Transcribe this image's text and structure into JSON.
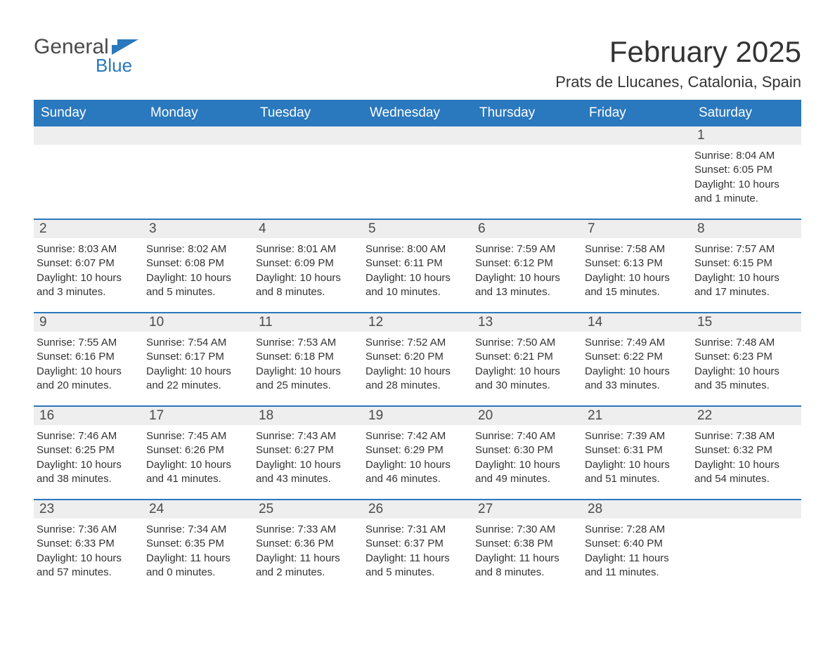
{
  "logo": {
    "top": "General",
    "bottom": "Blue",
    "text_color": "#4a4a4a",
    "accent_color": "#2a78bd"
  },
  "title": "February 2025",
  "location": "Prats de Llucanes, Catalonia, Spain",
  "colors": {
    "header_bg": "#2a78bd",
    "header_text": "#ffffff",
    "daynum_bg": "#eeeeee",
    "daynum_text": "#4a4a4a",
    "body_text": "#333333",
    "rule": "#2a78bd",
    "page_bg": "#ffffff"
  },
  "font": {
    "family": "Arial",
    "title_size_pt": 32,
    "location_size_pt": 17,
    "dow_size_pt": 14,
    "daynum_size_pt": 14,
    "body_size_pt": 11
  },
  "days_of_week": [
    "Sunday",
    "Monday",
    "Tuesday",
    "Wednesday",
    "Thursday",
    "Friday",
    "Saturday"
  ],
  "weeks": [
    [
      {
        "n": "",
        "sunrise": "",
        "sunset": "",
        "daylight": ""
      },
      {
        "n": "",
        "sunrise": "",
        "sunset": "",
        "daylight": ""
      },
      {
        "n": "",
        "sunrise": "",
        "sunset": "",
        "daylight": ""
      },
      {
        "n": "",
        "sunrise": "",
        "sunset": "",
        "daylight": ""
      },
      {
        "n": "",
        "sunrise": "",
        "sunset": "",
        "daylight": ""
      },
      {
        "n": "",
        "sunrise": "",
        "sunset": "",
        "daylight": ""
      },
      {
        "n": "1",
        "sunrise": "Sunrise: 8:04 AM",
        "sunset": "Sunset: 6:05 PM",
        "daylight": "Daylight: 10 hours and 1 minute."
      }
    ],
    [
      {
        "n": "2",
        "sunrise": "Sunrise: 8:03 AM",
        "sunset": "Sunset: 6:07 PM",
        "daylight": "Daylight: 10 hours and 3 minutes."
      },
      {
        "n": "3",
        "sunrise": "Sunrise: 8:02 AM",
        "sunset": "Sunset: 6:08 PM",
        "daylight": "Daylight: 10 hours and 5 minutes."
      },
      {
        "n": "4",
        "sunrise": "Sunrise: 8:01 AM",
        "sunset": "Sunset: 6:09 PM",
        "daylight": "Daylight: 10 hours and 8 minutes."
      },
      {
        "n": "5",
        "sunrise": "Sunrise: 8:00 AM",
        "sunset": "Sunset: 6:11 PM",
        "daylight": "Daylight: 10 hours and 10 minutes."
      },
      {
        "n": "6",
        "sunrise": "Sunrise: 7:59 AM",
        "sunset": "Sunset: 6:12 PM",
        "daylight": "Daylight: 10 hours and 13 minutes."
      },
      {
        "n": "7",
        "sunrise": "Sunrise: 7:58 AM",
        "sunset": "Sunset: 6:13 PM",
        "daylight": "Daylight: 10 hours and 15 minutes."
      },
      {
        "n": "8",
        "sunrise": "Sunrise: 7:57 AM",
        "sunset": "Sunset: 6:15 PM",
        "daylight": "Daylight: 10 hours and 17 minutes."
      }
    ],
    [
      {
        "n": "9",
        "sunrise": "Sunrise: 7:55 AM",
        "sunset": "Sunset: 6:16 PM",
        "daylight": "Daylight: 10 hours and 20 minutes."
      },
      {
        "n": "10",
        "sunrise": "Sunrise: 7:54 AM",
        "sunset": "Sunset: 6:17 PM",
        "daylight": "Daylight: 10 hours and 22 minutes."
      },
      {
        "n": "11",
        "sunrise": "Sunrise: 7:53 AM",
        "sunset": "Sunset: 6:18 PM",
        "daylight": "Daylight: 10 hours and 25 minutes."
      },
      {
        "n": "12",
        "sunrise": "Sunrise: 7:52 AM",
        "sunset": "Sunset: 6:20 PM",
        "daylight": "Daylight: 10 hours and 28 minutes."
      },
      {
        "n": "13",
        "sunrise": "Sunrise: 7:50 AM",
        "sunset": "Sunset: 6:21 PM",
        "daylight": "Daylight: 10 hours and 30 minutes."
      },
      {
        "n": "14",
        "sunrise": "Sunrise: 7:49 AM",
        "sunset": "Sunset: 6:22 PM",
        "daylight": "Daylight: 10 hours and 33 minutes."
      },
      {
        "n": "15",
        "sunrise": "Sunrise: 7:48 AM",
        "sunset": "Sunset: 6:23 PM",
        "daylight": "Daylight: 10 hours and 35 minutes."
      }
    ],
    [
      {
        "n": "16",
        "sunrise": "Sunrise: 7:46 AM",
        "sunset": "Sunset: 6:25 PM",
        "daylight": "Daylight: 10 hours and 38 minutes."
      },
      {
        "n": "17",
        "sunrise": "Sunrise: 7:45 AM",
        "sunset": "Sunset: 6:26 PM",
        "daylight": "Daylight: 10 hours and 41 minutes."
      },
      {
        "n": "18",
        "sunrise": "Sunrise: 7:43 AM",
        "sunset": "Sunset: 6:27 PM",
        "daylight": "Daylight: 10 hours and 43 minutes."
      },
      {
        "n": "19",
        "sunrise": "Sunrise: 7:42 AM",
        "sunset": "Sunset: 6:29 PM",
        "daylight": "Daylight: 10 hours and 46 minutes."
      },
      {
        "n": "20",
        "sunrise": "Sunrise: 7:40 AM",
        "sunset": "Sunset: 6:30 PM",
        "daylight": "Daylight: 10 hours and 49 minutes."
      },
      {
        "n": "21",
        "sunrise": "Sunrise: 7:39 AM",
        "sunset": "Sunset: 6:31 PM",
        "daylight": "Daylight: 10 hours and 51 minutes."
      },
      {
        "n": "22",
        "sunrise": "Sunrise: 7:38 AM",
        "sunset": "Sunset: 6:32 PM",
        "daylight": "Daylight: 10 hours and 54 minutes."
      }
    ],
    [
      {
        "n": "23",
        "sunrise": "Sunrise: 7:36 AM",
        "sunset": "Sunset: 6:33 PM",
        "daylight": "Daylight: 10 hours and 57 minutes."
      },
      {
        "n": "24",
        "sunrise": "Sunrise: 7:34 AM",
        "sunset": "Sunset: 6:35 PM",
        "daylight": "Daylight: 11 hours and 0 minutes."
      },
      {
        "n": "25",
        "sunrise": "Sunrise: 7:33 AM",
        "sunset": "Sunset: 6:36 PM",
        "daylight": "Daylight: 11 hours and 2 minutes."
      },
      {
        "n": "26",
        "sunrise": "Sunrise: 7:31 AM",
        "sunset": "Sunset: 6:37 PM",
        "daylight": "Daylight: 11 hours and 5 minutes."
      },
      {
        "n": "27",
        "sunrise": "Sunrise: 7:30 AM",
        "sunset": "Sunset: 6:38 PM",
        "daylight": "Daylight: 11 hours and 8 minutes."
      },
      {
        "n": "28",
        "sunrise": "Sunrise: 7:28 AM",
        "sunset": "Sunset: 6:40 PM",
        "daylight": "Daylight: 11 hours and 11 minutes."
      },
      {
        "n": "",
        "sunrise": "",
        "sunset": "",
        "daylight": ""
      }
    ]
  ]
}
